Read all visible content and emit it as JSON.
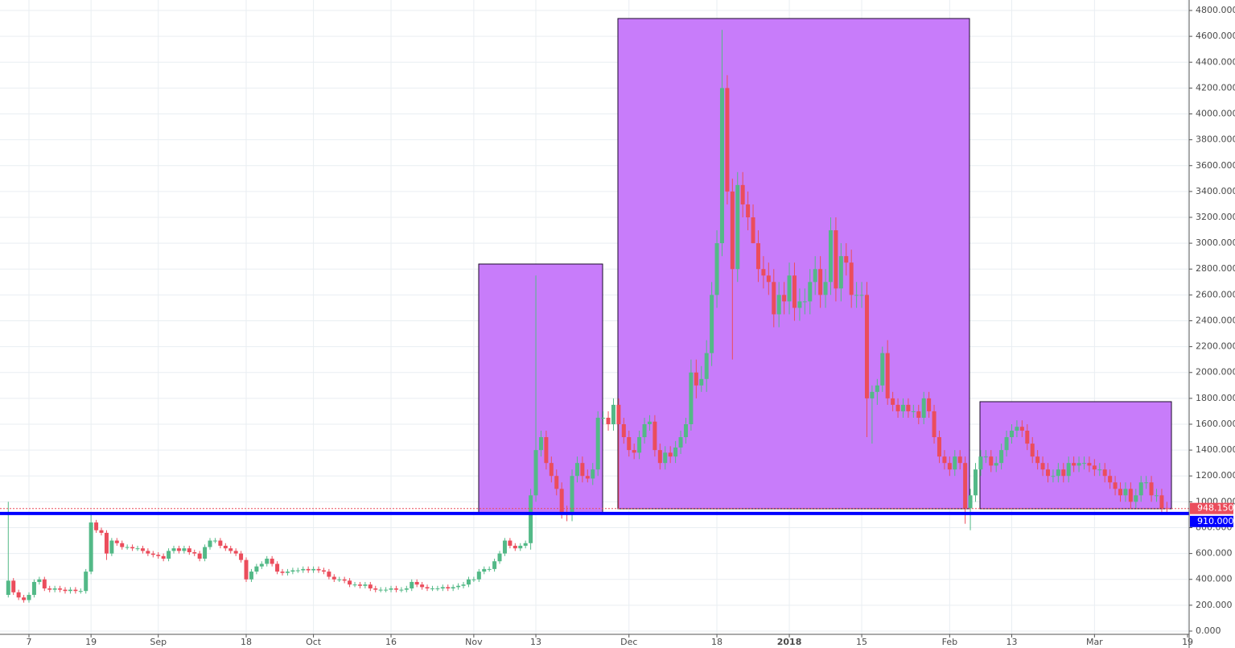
{
  "chart_data": {
    "type": "candlestick",
    "up_color": "#53b987",
    "down_color": "#eb4d5c",
    "grid": true,
    "xlim": [
      0.4,
      230.3
    ],
    "ylim": [
      -25,
      4881
    ],
    "xticks": [
      {
        "value": 6,
        "label": "7"
      },
      {
        "value": 18,
        "label": "19"
      },
      {
        "value": 31,
        "label": "Sep"
      },
      {
        "value": 48,
        "label": "18"
      },
      {
        "value": 61,
        "label": "Oct"
      },
      {
        "value": 76,
        "label": "16"
      },
      {
        "value": 92,
        "label": "Nov"
      },
      {
        "value": 104,
        "label": "13"
      },
      {
        "value": 122,
        "label": "Dec"
      },
      {
        "value": 139,
        "label": "18"
      },
      {
        "value": 153,
        "label": "2018",
        "bold": true
      },
      {
        "value": 167,
        "label": "15"
      },
      {
        "value": 184,
        "label": "Feb"
      },
      {
        "value": 196,
        "label": "13"
      },
      {
        "value": 212,
        "label": "Mar"
      },
      {
        "value": 230,
        "label": "19"
      }
    ],
    "yticks": [
      {
        "value": 0,
        "label": "0.000"
      },
      {
        "value": 200,
        "label": "200.000"
      },
      {
        "value": 400,
        "label": "400.000"
      },
      {
        "value": 600,
        "label": "600.000"
      },
      {
        "value": 800,
        "label": "800.000"
      },
      {
        "value": 1000,
        "label": "1000.000"
      },
      {
        "value": 1200,
        "label": "1200.000"
      },
      {
        "value": 1400,
        "label": "1400.000"
      },
      {
        "value": 1600,
        "label": "1600.000"
      },
      {
        "value": 1800,
        "label": "1800.000"
      },
      {
        "value": 2000,
        "label": "2000.000"
      },
      {
        "value": 2200,
        "label": "2200.000"
      },
      {
        "value": 2400,
        "label": "2400.000"
      },
      {
        "value": 2600,
        "label": "2600.000"
      },
      {
        "value": 2800,
        "label": "2800.000"
      },
      {
        "value": 3000,
        "label": "3000.000"
      },
      {
        "value": 3200,
        "label": "3200.000"
      },
      {
        "value": 3400,
        "label": "3400.000"
      },
      {
        "value": 3600,
        "label": "3600.000"
      },
      {
        "value": 3800,
        "label": "3800.000"
      },
      {
        "value": 4000,
        "label": "4000.000"
      },
      {
        "value": 4200,
        "label": "4200.000"
      },
      {
        "value": 4400,
        "label": "4400.000"
      },
      {
        "value": 4600,
        "label": "4600.000"
      },
      {
        "value": 4800,
        "label": "4800.000"
      }
    ],
    "support_line": {
      "value": 910,
      "label": "910.000",
      "color": "#0000ff"
    },
    "last_price": {
      "value": 948.15,
      "label": "948.150",
      "color": "#eb4d5c"
    },
    "x": [
      2,
      3,
      4,
      5,
      6,
      7,
      8,
      9,
      10,
      11,
      12,
      13,
      14,
      15,
      16,
      17,
      18,
      19,
      20,
      21,
      22,
      23,
      24,
      25,
      26,
      27,
      28,
      29,
      30,
      31,
      32,
      33,
      34,
      35,
      36,
      37,
      38,
      39,
      40,
      41,
      42,
      43,
      44,
      45,
      46,
      47,
      48,
      49,
      50,
      51,
      52,
      53,
      54,
      55,
      56,
      57,
      58,
      59,
      60,
      61,
      62,
      63,
      64,
      65,
      66,
      67,
      68,
      69,
      70,
      71,
      72,
      73,
      74,
      75,
      76,
      77,
      78,
      79,
      80,
      81,
      82,
      83,
      84,
      85,
      86,
      87,
      88,
      89,
      90,
      91,
      92,
      93,
      94,
      95,
      96,
      97,
      98,
      99,
      100,
      101,
      102,
      103,
      104,
      105,
      106,
      107,
      108,
      109,
      110,
      111,
      112,
      113,
      114,
      115,
      116,
      117,
      118,
      119,
      120,
      121,
      122,
      123,
      124,
      125,
      126,
      127,
      128,
      129,
      130,
      131,
      132,
      133,
      134,
      135,
      136,
      137,
      138,
      139,
      140,
      141,
      142,
      143,
      144,
      145,
      146,
      147,
      148,
      149,
      150,
      151,
      152,
      153,
      154,
      155,
      156,
      157,
      158,
      159,
      160,
      161,
      162,
      163,
      164,
      165,
      166,
      167,
      168,
      169,
      170,
      171,
      172,
      173,
      174,
      175,
      176,
      177,
      178,
      179,
      180,
      181,
      182,
      183,
      184,
      185,
      186,
      187,
      188,
      189,
      190,
      191,
      192,
      193,
      194,
      195,
      196,
      197,
      198,
      199,
      200,
      201,
      202,
      203,
      204,
      205,
      206,
      207,
      208,
      209,
      210,
      211,
      212,
      213,
      214,
      215,
      216,
      217,
      218,
      219,
      220,
      221,
      222,
      223,
      224,
      225,
      226
    ],
    "open": [
      280,
      390,
      300,
      260,
      240,
      280,
      380,
      400,
      330,
      320,
      330,
      320,
      310,
      320,
      310,
      310,
      460,
      840,
      780,
      760,
      600,
      700,
      680,
      650,
      650,
      640,
      640,
      620,
      600,
      590,
      580,
      560,
      620,
      640,
      620,
      640,
      610,
      600,
      560,
      650,
      700,
      700,
      660,
      640,
      620,
      600,
      550,
      400,
      460,
      500,
      520,
      560,
      520,
      460,
      450,
      460,
      470,
      470,
      480,
      470,
      480,
      470,
      460,
      420,
      400,
      400,
      390,
      360,
      360,
      350,
      360,
      330,
      320,
      320,
      320,
      330,
      320,
      320,
      330,
      380,
      360,
      340,
      330,
      330,
      330,
      340,
      330,
      340,
      350,
      360,
      400,
      400,
      460,
      480,
      480,
      540,
      600,
      700,
      660,
      640,
      660,
      680,
      1050,
      1400,
      1500,
      1300,
      1200,
      1100,
      920,
      900,
      1200,
      1300,
      1200,
      1180,
      1250,
      1650,
      1650,
      1600,
      1750,
      1600,
      1500,
      1400,
      1380,
      1500,
      1600,
      1620,
      1400,
      1300,
      1380,
      1350,
      1420,
      1500,
      1600,
      2000,
      1900,
      1950,
      2150,
      2600,
      3000,
      4200,
      3400,
      2800,
      3450,
      3300,
      3200,
      3000,
      2800,
      2750,
      2700,
      2450,
      2600,
      2550,
      2750,
      2500,
      2550,
      2550,
      2700,
      2800,
      2600,
      2700,
      3100,
      2650,
      2900,
      2850,
      2600,
      2600,
      2600,
      1800,
      1850,
      1900,
      2150,
      1800,
      1750,
      1700,
      1750,
      1700,
      1700,
      1650,
      1800,
      1700,
      1500,
      1350,
      1300,
      1250,
      1350,
      1300,
      950,
      1050,
      1250,
      1350,
      1350,
      1280,
      1300,
      1400,
      1500,
      1550,
      1580,
      1550,
      1450,
      1350,
      1300,
      1250,
      1200,
      1200,
      1250,
      1200,
      1300,
      1280,
      1300,
      1300,
      1280,
      1250,
      1250,
      1200,
      1150,
      1100,
      1050,
      1100,
      1000,
      1050,
      1150,
      1150,
      1050,
      1050,
      950
    ],
    "high": [
      1000,
      410,
      320,
      280,
      300,
      400,
      420,
      420,
      350,
      350,
      350,
      340,
      340,
      340,
      330,
      480,
      900,
      860,
      800,
      780,
      720,
      720,
      700,
      670,
      670,
      660,
      660,
      640,
      620,
      610,
      600,
      640,
      660,
      660,
      660,
      660,
      630,
      620,
      670,
      720,
      720,
      720,
      680,
      660,
      640,
      620,
      570,
      480,
      520,
      540,
      580,
      580,
      540,
      480,
      480,
      490,
      490,
      500,
      500,
      500,
      500,
      490,
      480,
      440,
      420,
      420,
      410,
      380,
      380,
      380,
      380,
      350,
      340,
      340,
      350,
      350,
      340,
      350,
      400,
      400,
      380,
      360,
      350,
      350,
      360,
      360,
      360,
      370,
      380,
      420,
      420,
      480,
      500,
      500,
      560,
      620,
      720,
      720,
      680,
      680,
      700,
      1100,
      2750,
      1550,
      1550,
      1350,
      1250,
      1150,
      970,
      1250,
      1350,
      1350,
      1250,
      1300,
      1700,
      1700,
      1700,
      1800,
      1800,
      1650,
      1550,
      1450,
      1550,
      1650,
      1670,
      1670,
      1450,
      1430,
      1430,
      1470,
      1550,
      1650,
      2100,
      2100,
      2050,
      2250,
      2700,
      3100,
      4650,
      4300,
      3500,
      3550,
      3550,
      3400,
      3300,
      3100,
      2900,
      2850,
      2800,
      2700,
      2700,
      2850,
      2850,
      2650,
      2650,
      2800,
      2900,
      2900,
      2800,
      3200,
      3200,
      3000,
      3000,
      2950,
      2700,
      2700,
      2700,
      1900,
      1950,
      2200,
      2250,
      1850,
      1800,
      1800,
      1800,
      1750,
      1750,
      1850,
      1850,
      1750,
      1550,
      1400,
      1350,
      1400,
      1400,
      1350,
      1100,
      1300,
      1400,
      1400,
      1400,
      1350,
      1450,
      1550,
      1600,
      1630,
      1630,
      1600,
      1500,
      1400,
      1350,
      1300,
      1250,
      1300,
      1300,
      1350,
      1350,
      1350,
      1350,
      1350,
      1330,
      1300,
      1300,
      1250,
      1200,
      1150,
      1150,
      1150,
      1100,
      1200,
      1200,
      1200,
      1100,
      1100,
      1000
    ],
    "low": [
      260,
      280,
      240,
      220,
      220,
      260,
      360,
      310,
      300,
      300,
      300,
      290,
      290,
      290,
      290,
      290,
      440,
      760,
      740,
      550,
      580,
      660,
      630,
      630,
      620,
      620,
      600,
      580,
      570,
      560,
      540,
      540,
      600,
      600,
      600,
      590,
      580,
      540,
      540,
      630,
      680,
      640,
      620,
      600,
      580,
      530,
      380,
      380,
      440,
      480,
      500,
      500,
      440,
      430,
      430,
      440,
      450,
      450,
      450,
      450,
      450,
      440,
      400,
      380,
      380,
      370,
      340,
      340,
      330,
      330,
      310,
      300,
      300,
      300,
      300,
      300,
      300,
      300,
      310,
      340,
      320,
      310,
      310,
      310,
      310,
      310,
      310,
      320,
      330,
      340,
      380,
      380,
      440,
      460,
      460,
      520,
      580,
      640,
      620,
      620,
      640,
      630,
      1000,
      1350,
      1250,
      1150,
      1050,
      870,
      850,
      850,
      1150,
      1150,
      1150,
      1130,
      1200,
      1600,
      1550,
      1550,
      950,
      1450,
      1350,
      1330,
      1330,
      1450,
      1550,
      1350,
      1250,
      1250,
      1300,
      1300,
      1370,
      1450,
      1550,
      1800,
      1850,
      1850,
      2050,
      2500,
      2900,
      3300,
      2100,
      2700,
      3200,
      3100,
      3000,
      2700,
      2650,
      2600,
      2350,
      2350,
      2450,
      2450,
      2400,
      2400,
      2450,
      2450,
      2600,
      2500,
      2500,
      2600,
      2550,
      2550,
      2750,
      2500,
      2500,
      2500,
      1500,
      1450,
      1750,
      1850,
      1750,
      1700,
      1650,
      1650,
      1650,
      1650,
      1600,
      1600,
      1650,
      1450,
      1300,
      1250,
      1200,
      1200,
      1250,
      830,
      780,
      1000,
      1200,
      1300,
      1230,
      1230,
      1250,
      1350,
      1450,
      1500,
      1500,
      1400,
      1300,
      1250,
      1200,
      1150,
      1150,
      1150,
      1150,
      1150,
      1230,
      1230,
      1250,
      1230,
      1200,
      1200,
      1150,
      1100,
      1050,
      1000,
      1000,
      950,
      950,
      1000,
      1100,
      1000,
      1000,
      900,
      900
    ],
    "close": [
      390,
      300,
      260,
      240,
      280,
      380,
      400,
      330,
      320,
      330,
      320,
      310,
      320,
      310,
      310,
      460,
      840,
      780,
      760,
      600,
      700,
      680,
      650,
      650,
      640,
      640,
      620,
      600,
      590,
      580,
      560,
      620,
      640,
      620,
      640,
      610,
      600,
      560,
      650,
      700,
      700,
      660,
      640,
      620,
      600,
      550,
      400,
      460,
      500,
      520,
      560,
      520,
      460,
      450,
      460,
      470,
      470,
      480,
      470,
      480,
      470,
      460,
      420,
      400,
      400,
      390,
      360,
      360,
      350,
      360,
      330,
      320,
      320,
      320,
      330,
      320,
      320,
      330,
      380,
      360,
      340,
      330,
      330,
      330,
      340,
      330,
      340,
      350,
      360,
      400,
      400,
      460,
      480,
      480,
      540,
      600,
      700,
      660,
      640,
      660,
      680,
      1050,
      1400,
      1500,
      1300,
      1200,
      1100,
      920,
      900,
      1200,
      1300,
      1200,
      1180,
      1250,
      1650,
      1650,
      1600,
      1750,
      1600,
      1500,
      1400,
      1380,
      1500,
      1600,
      1620,
      1400,
      1300,
      1380,
      1350,
      1420,
      1500,
      1600,
      2000,
      1900,
      1950,
      2150,
      2600,
      3000,
      4200,
      3400,
      2800,
      3450,
      3300,
      3200,
      3000,
      2800,
      2750,
      2700,
      2450,
      2600,
      2550,
      2750,
      2500,
      2550,
      2550,
      2700,
      2800,
      2600,
      2700,
      3100,
      2650,
      2900,
      2850,
      2600,
      2600,
      2600,
      1800,
      1850,
      1900,
      2150,
      1800,
      1750,
      1700,
      1750,
      1700,
      1700,
      1650,
      1800,
      1700,
      1500,
      1350,
      1300,
      1250,
      1350,
      1300,
      950,
      1050,
      1250,
      1350,
      1350,
      1280,
      1300,
      1400,
      1500,
      1550,
      1580,
      1550,
      1450,
      1350,
      1300,
      1250,
      1200,
      1200,
      1250,
      1200,
      1300,
      1280,
      1300,
      1300,
      1280,
      1250,
      1250,
      1200,
      1150,
      1100,
      1050,
      1100,
      1000,
      1050,
      1150,
      1150,
      1050,
      1050,
      950,
      948.15
    ]
  }
}
